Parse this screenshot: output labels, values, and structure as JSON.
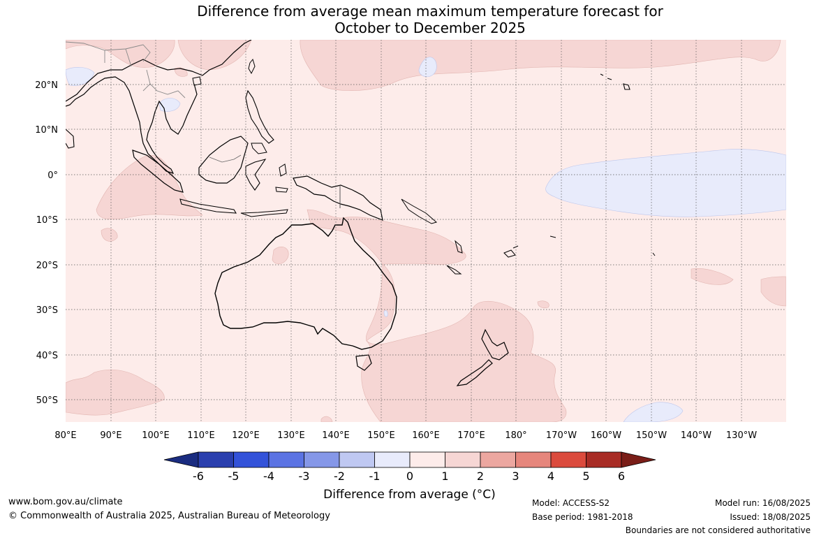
{
  "title_line1": "Difference from average mean maximum temperature forecast for",
  "title_line2": "October to December 2025",
  "lon_labels": [
    "80°E",
    "90°E",
    "100°E",
    "110°E",
    "120°E",
    "130°E",
    "140°E",
    "150°E",
    "160°E",
    "170°E",
    "180°",
    "170°W",
    "160°W",
    "150°W",
    "140°W",
    "130°W"
  ],
  "lat_labels": [
    "20°N",
    "10°N",
    "0°",
    "10°S",
    "20°S",
    "30°S",
    "40°S",
    "50°S"
  ],
  "colorbar": {
    "title": "Difference from average (°C)",
    "ticks": [
      "-6",
      "-5",
      "-4",
      "-3",
      "-2",
      "-1",
      "0",
      "1",
      "2",
      "3",
      "4",
      "5",
      "6"
    ],
    "colors": [
      "#1a2c80",
      "#2a3fae",
      "#3352d9",
      "#5b73e3",
      "#8597e8",
      "#bfc8f2",
      "#e8ebfb",
      "#fdecea",
      "#f6d6d4",
      "#eca7a0",
      "#e6867c",
      "#db4b3d",
      "#a82c25",
      "#7a1e18"
    ]
  },
  "footer": {
    "website": "www.bom.gov.au/climate",
    "copyright": "© Commonwealth of Australia 2025, Australian Bureau of Meteorology",
    "model": "Model: ACCESS-S2",
    "base_period": "Base period: 1981-2018",
    "model_run": "Model run: 16/08/2025",
    "issued": "Issued: 18/08/2025",
    "disclaimer": "Boundaries are not considered authoritative"
  }
}
